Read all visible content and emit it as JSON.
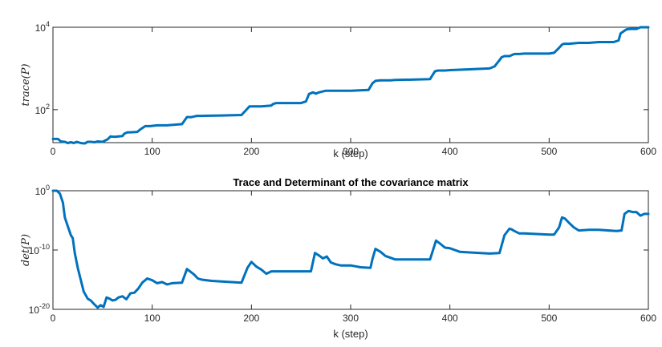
{
  "chart_data": [
    {
      "type": "line",
      "title": "",
      "xlabel": "k (step)",
      "ylabel": "trace(P)",
      "xlim": [
        0,
        600
      ],
      "ylim_log10": [
        1.2,
        4.0
      ],
      "yscale": "log",
      "xticks": [
        "0",
        "100",
        "200",
        "300",
        "400",
        "500",
        "600"
      ],
      "yticks": [
        {
          "base": "10",
          "exp": "2",
          "value": 2
        },
        {
          "base": "10",
          "exp": "4",
          "value": 4
        }
      ],
      "color": "#0072BD",
      "series": [
        {
          "x": [
            0,
            5,
            8,
            12,
            15,
            18,
            21,
            24,
            28,
            32,
            35,
            38,
            42,
            45,
            50,
            55,
            58,
            62,
            70,
            72,
            75,
            78,
            85,
            88,
            93,
            95,
            98,
            105,
            108,
            115,
            125,
            130,
            135,
            140,
            145,
            150,
            170,
            190,
            195,
            198,
            210,
            220,
            222,
            225,
            250,
            255,
            258,
            262,
            265,
            268,
            275,
            280,
            300,
            318,
            322,
            325,
            330,
            340,
            345,
            380,
            382,
            385,
            388,
            395,
            400,
            420,
            440,
            445,
            450,
            452,
            455,
            460,
            465,
            470,
            475,
            500,
            505,
            510,
            513,
            515,
            520,
            530,
            540,
            550,
            565,
            570,
            572,
            575,
            578,
            582,
            588,
            592,
            596,
            600
          ],
          "log10_y": [
            1.29,
            1.29,
            1.23,
            1.22,
            1.19,
            1.21,
            1.19,
            1.22,
            1.19,
            1.18,
            1.22,
            1.22,
            1.21,
            1.23,
            1.22,
            1.28,
            1.35,
            1.34,
            1.36,
            1.42,
            1.45,
            1.45,
            1.46,
            1.52,
            1.6,
            1.6,
            1.6,
            1.62,
            1.62,
            1.62,
            1.64,
            1.65,
            1.82,
            1.82,
            1.85,
            1.85,
            1.86,
            1.87,
            2.0,
            2.08,
            2.08,
            2.1,
            2.14,
            2.16,
            2.16,
            2.2,
            2.38,
            2.42,
            2.39,
            2.42,
            2.46,
            2.46,
            2.46,
            2.48,
            2.64,
            2.7,
            2.71,
            2.71,
            2.72,
            2.74,
            2.82,
            2.93,
            2.95,
            2.95,
            2.96,
            2.98,
            3.0,
            3.05,
            3.2,
            3.27,
            3.3,
            3.3,
            3.35,
            3.35,
            3.36,
            3.36,
            3.38,
            3.5,
            3.58,
            3.6,
            3.6,
            3.62,
            3.62,
            3.64,
            3.64,
            3.68,
            3.85,
            3.9,
            3.95,
            3.96,
            3.96,
            4.0,
            4.0,
            4.0
          ]
        }
      ]
    },
    {
      "type": "line",
      "title": "Trace and Determinant of the covariance matrix",
      "xlabel": "k (step)",
      "ylabel": "det(P)",
      "xlim": [
        0,
        600
      ],
      "ylim_log10": [
        -20,
        0
      ],
      "yscale": "log",
      "xticks": [
        "0",
        "100",
        "200",
        "300",
        "400",
        "500",
        "600"
      ],
      "yticks": [
        {
          "base": "10",
          "exp": "0",
          "value": 0
        },
        {
          "base": "10",
          "exp": "-10",
          "value": -10
        },
        {
          "base": "10",
          "exp": "-20",
          "value": -20
        }
      ],
      "color": "#0072BD",
      "series": [
        {
          "x": [
            0,
            4,
            7,
            10,
            12,
            15,
            18,
            20,
            22,
            25,
            28,
            31,
            35,
            38,
            42,
            45,
            48,
            51,
            54,
            57,
            60,
            63,
            66,
            70,
            74,
            78,
            82,
            86,
            90,
            95,
            100,
            105,
            110,
            115,
            120,
            130,
            135,
            138,
            142,
            146,
            150,
            160,
            170,
            190,
            196,
            200,
            205,
            210,
            215,
            220,
            260,
            264,
            268,
            272,
            276,
            280,
            285,
            290,
            300,
            310,
            320,
            322,
            325,
            330,
            335,
            340,
            345,
            350,
            380,
            386,
            390,
            395,
            400,
            405,
            410,
            420,
            440,
            450,
            455,
            460,
            462,
            465,
            470,
            475,
            500,
            505,
            510,
            513,
            516,
            520,
            525,
            530,
            540,
            550,
            568,
            573,
            576,
            580,
            584,
            588,
            592,
            596,
            600
          ],
          "log10_y": [
            0,
            0,
            -0.5,
            -2,
            -4.5,
            -6,
            -7.5,
            -8,
            -10.5,
            -13,
            -15,
            -17,
            -18.2,
            -18.5,
            -19.2,
            -19.7,
            -19.3,
            -19.6,
            -18,
            -18.2,
            -18.5,
            -18.4,
            -18,
            -17.8,
            -18.3,
            -17.3,
            -17.2,
            -16.5,
            -15.5,
            -14.8,
            -15.1,
            -15.6,
            -15.4,
            -15.8,
            -15.6,
            -15.5,
            -13.2,
            -13.6,
            -14.1,
            -14.8,
            -15,
            -15.2,
            -15.3,
            -15.5,
            -13,
            -12,
            -12.8,
            -13.3,
            -14,
            -13.6,
            -13.6,
            -10.5,
            -10.9,
            -11.4,
            -11.1,
            -12.1,
            -12.4,
            -12.6,
            -12.6,
            -12.9,
            -13,
            -11.5,
            -9.8,
            -10.3,
            -11,
            -11.3,
            -11.6,
            -11.6,
            -11.6,
            -8.4,
            -8.9,
            -9.6,
            -9.7,
            -10,
            -10.3,
            -10.4,
            -10.6,
            -10.5,
            -7.5,
            -6.4,
            -6.5,
            -6.8,
            -7.2,
            -7.2,
            -7.4,
            -7.4,
            -6.2,
            -4.5,
            -4.7,
            -5.4,
            -6.2,
            -6.7,
            -6.6,
            -6.6,
            -6.8,
            -6.7,
            -3.9,
            -3.4,
            -3.6,
            -3.6,
            -4.2,
            -3.9,
            -3.9
          ]
        }
      ]
    }
  ]
}
